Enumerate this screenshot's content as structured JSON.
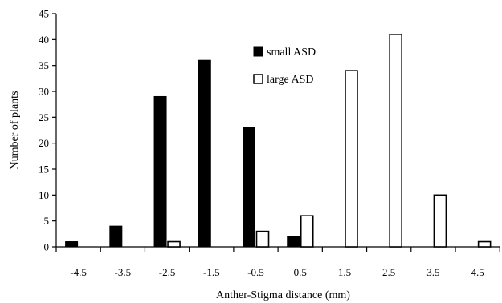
{
  "chart_data": {
    "type": "bar",
    "categories": [
      "-4.5",
      "-3.5",
      "-2.5",
      "-1.5",
      "-0.5",
      "0.5",
      "1.5",
      "2.5",
      "3.5",
      "4.5"
    ],
    "series": [
      {
        "name": "small ASD",
        "color": "#000000",
        "fill": "solid",
        "values": [
          1,
          4,
          29,
          36,
          23,
          2,
          0,
          0,
          0,
          0
        ]
      },
      {
        "name": "large ASD",
        "color": "#ffffff",
        "fill": "open",
        "values": [
          0,
          0,
          1,
          0,
          3,
          6,
          34,
          41,
          10,
          1
        ]
      }
    ],
    "title": "",
    "xlabel": "Anther-Stigma distance (mm)",
    "ylabel": "Number of plants",
    "ylim": [
      0,
      45
    ],
    "yticks": [
      "0",
      "5",
      "10",
      "15",
      "20",
      "25",
      "30",
      "35",
      "40",
      "45"
    ],
    "grid": false,
    "legend_position": "top-center"
  }
}
